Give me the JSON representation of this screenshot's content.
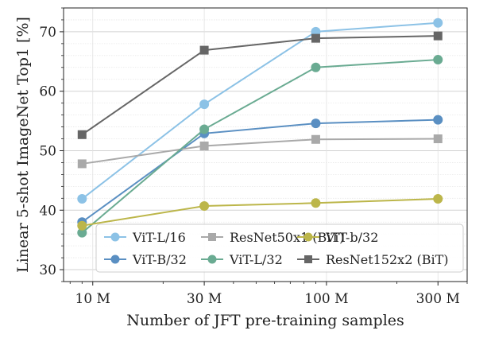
{
  "chart_data": {
    "type": "line",
    "title": "",
    "xlabel": "Number of JFT pre-training samples",
    "ylabel": "Linear 5-shot ImageNet Top1 [%]",
    "x_scale": "log",
    "x": [
      10,
      30,
      100,
      300
    ],
    "x_units": "M samples",
    "xlim": [
      7.5,
      400
    ],
    "ylim": [
      28,
      74
    ],
    "x_ticks": [
      {
        "value": 10,
        "label": "10 M"
      },
      {
        "value": 30,
        "label": "30 M"
      },
      {
        "value": 100,
        "label": "100 M"
      },
      {
        "value": 300,
        "label": "300 M"
      }
    ],
    "y_ticks": [
      {
        "value": 30,
        "label": "30"
      },
      {
        "value": 40,
        "label": "40"
      },
      {
        "value": 50,
        "label": "50"
      },
      {
        "value": 60,
        "label": "60"
      },
      {
        "value": 70,
        "label": "70"
      }
    ],
    "grid": true,
    "legend_position": "bottom-right",
    "series": [
      {
        "name": "ViT-L/16",
        "color": "#8cc2e6",
        "marker": "circle",
        "x": [
          9,
          30,
          90,
          300
        ],
        "values": [
          41.9,
          57.8,
          70.0,
          71.5
        ]
      },
      {
        "name": "ViT-B/32",
        "color": "#5a8fc2",
        "marker": "circle",
        "x": [
          9,
          30,
          90,
          300
        ],
        "values": [
          38.0,
          52.9,
          54.6,
          55.2
        ]
      },
      {
        "name": "ResNet50x1 (BiT)",
        "color": "#a9a9a9",
        "marker": "square",
        "x": [
          9,
          30,
          90,
          300
        ],
        "values": [
          47.8,
          50.8,
          51.9,
          52.0
        ]
      },
      {
        "name": "ViT-L/32",
        "color": "#6aab92",
        "marker": "circle",
        "x": [
          9,
          30,
          90,
          300
        ],
        "values": [
          36.2,
          53.6,
          64.0,
          65.3
        ]
      },
      {
        "name": "ViT-b/32",
        "color": "#bcb64a",
        "marker": "circle",
        "x": [
          9,
          30,
          90,
          300
        ],
        "values": [
          37.4,
          40.7,
          41.2,
          41.9
        ]
      },
      {
        "name": "ResNet152x2 (BiT)",
        "color": "#666666",
        "marker": "square",
        "x": [
          9,
          30,
          90,
          300
        ],
        "values": [
          52.7,
          66.9,
          68.9,
          69.3
        ]
      }
    ]
  }
}
